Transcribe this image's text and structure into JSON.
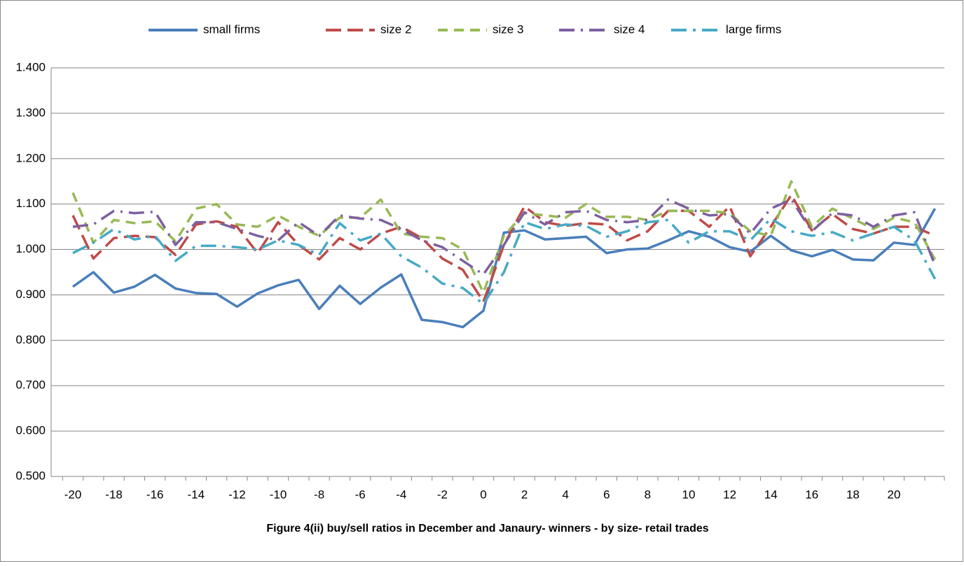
{
  "chart_data": {
    "type": "line",
    "title": "Figure 4(ii) buy/sell ratios in December and Janaury- winners - by size- retail trades",
    "categories": [
      -20,
      null,
      -18,
      null,
      -16,
      null,
      -14,
      null,
      -12,
      null,
      -10,
      null,
      -8,
      null,
      -6,
      null,
      -4,
      null,
      -2,
      null,
      0,
      null,
      2,
      null,
      4,
      null,
      6,
      null,
      8,
      null,
      10,
      null,
      12,
      null,
      14,
      null,
      16,
      null,
      18,
      null,
      20,
      null,
      null
    ],
    "ylim": [
      0.5,
      1.4
    ],
    "yticks": [
      {
        "value": 0.5,
        "label": "0.500"
      },
      {
        "value": 0.6,
        "label": "0.600"
      },
      {
        "value": 0.7,
        "label": "0.700"
      },
      {
        "value": 0.8,
        "label": "0.800"
      },
      {
        "value": 0.9,
        "label": "0.900"
      },
      {
        "value": 1.0,
        "label": "1.000"
      },
      {
        "value": 1.1,
        "label": "1.100"
      },
      {
        "value": 1.2,
        "label": "1.200"
      },
      {
        "value": 1.3,
        "label": "1.300"
      },
      {
        "value": 1.4,
        "label": "1.400"
      }
    ],
    "grid": true,
    "legend": "top",
    "series": [
      {
        "name": "small firms",
        "color": "#4a7ebb",
        "values": [
          0.918,
          0.95,
          0.905,
          0.918,
          0.944,
          0.914,
          0.904,
          0.902,
          0.874,
          0.903,
          0.921,
          0.933,
          0.869,
          0.92,
          0.88,
          0.916,
          0.945,
          0.845,
          0.84,
          0.829,
          0.865,
          1.037,
          1.042,
          1.022,
          1.025,
          1.028,
          0.992,
          1.0,
          1.002,
          1.02,
          1.04,
          1.028,
          1.005,
          0.995,
          1.03,
          0.998,
          0.985,
          0.999,
          0.978,
          0.976,
          1.015,
          1.01,
          1.09
        ]
      },
      {
        "name": "size 2",
        "color": "#be4b48",
        "values": [
          1.075,
          0.98,
          1.025,
          1.03,
          1.027,
          0.988,
          1.055,
          1.062,
          1.05,
          0.992,
          1.06,
          1.01,
          0.978,
          1.025,
          1.0,
          1.035,
          1.05,
          1.025,
          0.98,
          0.955,
          0.885,
          1.01,
          1.095,
          1.06,
          1.052,
          1.058,
          1.055,
          1.02,
          1.04,
          1.085,
          1.085,
          1.05,
          1.095,
          0.985,
          1.05,
          1.12,
          1.042,
          1.078,
          1.045,
          1.035,
          1.05,
          1.05,
          1.03
        ]
      },
      {
        "name": "size 3",
        "color": "#98b954",
        "values": [
          1.125,
          1.015,
          1.065,
          1.058,
          1.062,
          1.018,
          1.09,
          1.1,
          1.055,
          1.05,
          1.075,
          1.05,
          1.03,
          1.07,
          1.07,
          1.11,
          1.035,
          1.028,
          1.025,
          1.0,
          0.905,
          1.03,
          1.08,
          1.075,
          1.07,
          1.1,
          1.072,
          1.072,
          1.065,
          1.085,
          1.085,
          1.085,
          1.08,
          1.04,
          1.03,
          1.15,
          1.05,
          1.09,
          1.068,
          1.045,
          1.07,
          1.06,
          0.978
        ]
      },
      {
        "name": "size 4",
        "color": "#7d60a0",
        "values": [
          1.05,
          1.055,
          1.085,
          1.08,
          1.083,
          1.01,
          1.06,
          1.06,
          1.045,
          1.03,
          1.02,
          1.06,
          1.03,
          1.075,
          1.068,
          1.065,
          1.045,
          1.02,
          1.005,
          0.975,
          0.945,
          1.01,
          1.082,
          1.055,
          1.082,
          1.085,
          1.065,
          1.06,
          1.065,
          1.11,
          1.09,
          1.075,
          1.078,
          1.035,
          1.09,
          1.11,
          1.04,
          1.08,
          1.075,
          1.05,
          1.075,
          1.082,
          0.965
        ]
      },
      {
        "name": "large firms",
        "color": "#46aac5",
        "values": [
          0.992,
          1.015,
          1.045,
          1.022,
          1.03,
          0.975,
          1.008,
          1.008,
          1.005,
          1.0,
          1.02,
          1.01,
          0.988,
          1.058,
          1.02,
          1.035,
          0.985,
          0.96,
          0.925,
          0.915,
          0.88,
          0.95,
          1.06,
          1.045,
          1.055,
          1.052,
          1.028,
          1.04,
          1.06,
          1.065,
          1.015,
          1.04,
          1.04,
          1.02,
          1.068,
          1.04,
          1.03,
          1.038,
          1.02,
          1.035,
          1.05,
          1.02,
          0.935
        ]
      }
    ]
  }
}
